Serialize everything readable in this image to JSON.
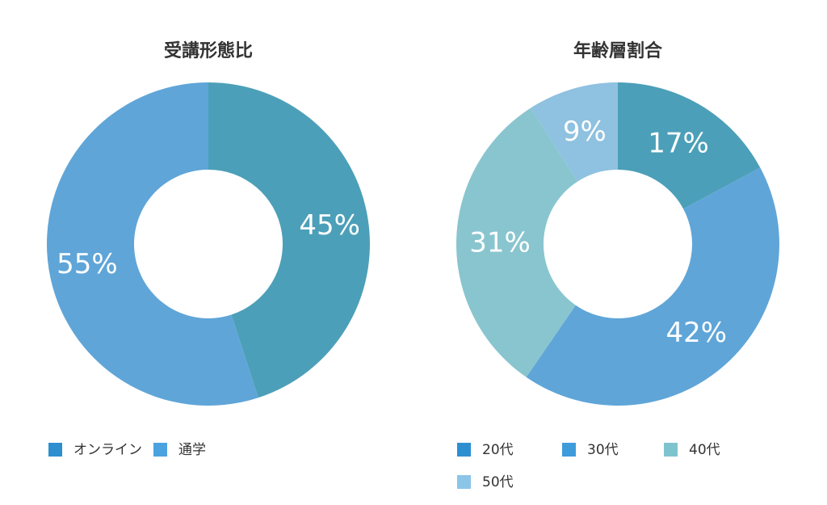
{
  "chart_data": [
    {
      "type": "pie",
      "variant": "donut",
      "title": "受講形態比",
      "categories": [
        "オンライン",
        "通学"
      ],
      "values": [
        45,
        55
      ],
      "labels": [
        "45%",
        "55%"
      ],
      "colors": [
        "#4c9fb8",
        "#5fa5d8"
      ],
      "legend_colors": [
        "#2d8fd0",
        "#4aa3df"
      ],
      "legend": "bottom-left"
    },
    {
      "type": "pie",
      "variant": "donut",
      "title": "年齢層割合",
      "categories": [
        "20代",
        "30代",
        "40代",
        "50代"
      ],
      "values": [
        17,
        42,
        31,
        9
      ],
      "labels": [
        "17%",
        "42%",
        "31%",
        "9%"
      ],
      "colors": [
        "#4c9fb8",
        "#5fa5d8",
        "#89c5cf",
        "#8fc1e0"
      ],
      "legend_colors": [
        "#2d8fd0",
        "#3f9cdb",
        "#7ec4cf",
        "#8cc5e8"
      ],
      "legend": "bottom-left"
    }
  ]
}
